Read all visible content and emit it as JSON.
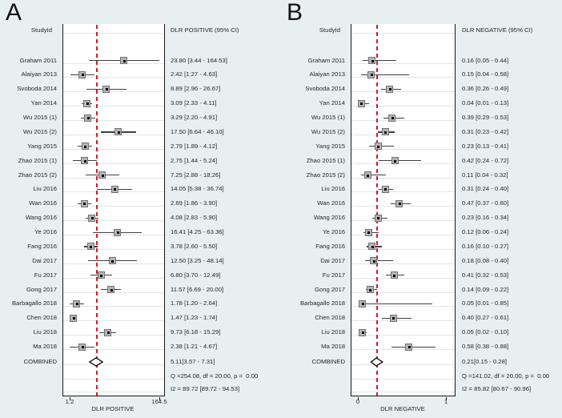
{
  "figure": {
    "colors": {
      "background": "#e8eff1",
      "plot_background": "#ffffff",
      "reference_line_red": "#cb2027",
      "marker_gray": "#b5b5b5",
      "line_black": "#161616"
    }
  },
  "chart_data": [
    {
      "type": "forest",
      "panel_label": "A",
      "column_headers": {
        "study": "StudyId",
        "effect": "DLR POSITIVE (95% CI)"
      },
      "axis": {
        "scale": "log",
        "min": 1.2,
        "max": 164.5,
        "ticks": [
          "1.2",
          "164.5"
        ],
        "xlabel": "DLR POSITIVE",
        "grid": true
      },
      "ref_line_value": 5.11,
      "studies": [
        {
          "label": "Graham 2011",
          "est": 23.8,
          "lo": 3.44,
          "hi": 164.53,
          "text": "23.80 [3.44 - 164.53]"
        },
        {
          "label": "Alaiyan 2013",
          "est": 2.42,
          "lo": 1.27,
          "hi": 4.63,
          "text": "2.42 [1.27 - 4.63]"
        },
        {
          "label": "Svoboda 2014",
          "est": 8.89,
          "lo": 2.96,
          "hi": 26.67,
          "text": "8.89 [2.96 - 26.67]"
        },
        {
          "label": "Yan 2014",
          "est": 3.09,
          "lo": 2.33,
          "hi": 4.11,
          "text": "3.09 [2.33 - 4.11]"
        },
        {
          "label": "Wu 2015 (1)",
          "est": 3.29,
          "lo": 2.2,
          "hi": 4.91,
          "text": "3.29 [2.20 - 4.91]"
        },
        {
          "label": "Wu 2015 (2)",
          "est": 17.5,
          "lo": 6.64,
          "hi": 46.1,
          "text": "17.50 [6.64 - 46.10]"
        },
        {
          "label": "Yang 2015",
          "est": 2.79,
          "lo": 1.89,
          "hi": 4.12,
          "text": "2.79 [1.89 - 4.12]"
        },
        {
          "label": "Zhao 2015 (1)",
          "est": 2.75,
          "lo": 1.44,
          "hi": 5.24,
          "text": "2.75 [1.44 - 5.24]"
        },
        {
          "label": "Zhao 2015 (2)",
          "est": 7.25,
          "lo": 2.88,
          "hi": 18.26,
          "text": "7.25 [2.88 - 18.26]"
        },
        {
          "label": "Liu 2016",
          "est": 14.05,
          "lo": 5.38,
          "hi": 36.74,
          "text": "14.05 [5.38 - 36.74]"
        },
        {
          "label": "Wan 2016",
          "est": 2.69,
          "lo": 1.86,
          "hi": 3.9,
          "text": "2.69 [1.86 - 3.90]"
        },
        {
          "label": "Wang 2016",
          "est": 4.08,
          "lo": 2.83,
          "hi": 5.9,
          "text": "4.08 [2.83 - 5.90]"
        },
        {
          "label": "Ye 2016",
          "est": 16.41,
          "lo": 4.25,
          "hi": 63.36,
          "text": "16.41 [4.25 - 63.36]"
        },
        {
          "label": "Fang 2016",
          "est": 3.78,
          "lo": 2.6,
          "hi": 5.5,
          "text": "3.78 [2.60 - 5.50]"
        },
        {
          "label": "Dai 2017",
          "est": 12.5,
          "lo": 3.25,
          "hi": 48.14,
          "text": "12.50 [3.25 - 48.14]"
        },
        {
          "label": "Fu 2017",
          "est": 6.8,
          "lo": 3.7,
          "hi": 12.49,
          "text": "6.80 [3.70 - 12.49]"
        },
        {
          "label": "Gong 2017",
          "est": 11.57,
          "lo": 6.69,
          "hi": 20.0,
          "text": "11.57 [6.69 - 20.00]"
        },
        {
          "label": "Barbagallo 2018",
          "est": 1.78,
          "lo": 1.2,
          "hi": 2.64,
          "text": "1.78 [1.20 - 2.64]"
        },
        {
          "label": "Chen 2018",
          "est": 1.47,
          "lo": 1.23,
          "hi": 1.74,
          "text": "1.47 [1.23 - 1.74]"
        },
        {
          "label": "Liu 2018",
          "est": 9.73,
          "lo": 6.18,
          "hi": 15.29,
          "text": "9.73 [6.18 - 15.29]"
        },
        {
          "label": "Ma 2018",
          "est": 2.38,
          "lo": 1.21,
          "hi": 4.67,
          "text": "2.38 [1.21 - 4.67]"
        }
      ],
      "combined": {
        "label": "COMBINED",
        "est": 5.11,
        "lo": 3.57,
        "hi": 7.31,
        "text": "5.11[3.57 - 7.31]"
      },
      "heterogeneity": {
        "q_line": "Q =254.08, df = 20.00, p =  0.00",
        "i2_line": "I2 = 89.72 [89.72 - 94.53]"
      }
    },
    {
      "type": "forest",
      "panel_label": "B",
      "column_headers": {
        "study": "StudyId",
        "effect": "DLR NEGATIVE (95% CI)"
      },
      "axis": {
        "scale": "linear",
        "min": 0,
        "max": 1,
        "ticks": [
          "0",
          "1"
        ],
        "xlabel": "DLR NEGATIVE",
        "grid": true
      },
      "ref_line_value": 0.21,
      "studies": [
        {
          "label": "Graham 2011",
          "est": 0.16,
          "lo": 0.05,
          "hi": 0.44,
          "text": "0.16 [0.05 - 0.44]"
        },
        {
          "label": "Alaiyan 2013",
          "est": 0.15,
          "lo": 0.04,
          "hi": 0.58,
          "text": "0.15 [0.04 - 0.58]"
        },
        {
          "label": "Svoboda 2014",
          "est": 0.36,
          "lo": 0.26,
          "hi": 0.49,
          "text": "0.36 [0.26 - 0.49]"
        },
        {
          "label": "Yan 2014",
          "est": 0.04,
          "lo": 0.01,
          "hi": 0.13,
          "text": "0.04 [0.01 - 0.13]"
        },
        {
          "label": "Wu 2015 (1)",
          "est": 0.39,
          "lo": 0.29,
          "hi": 0.53,
          "text": "0.39 [0.29 - 0.53]"
        },
        {
          "label": "Wu 2015 (2)",
          "est": 0.31,
          "lo": 0.23,
          "hi": 0.42,
          "text": "0.31 [0.23 - 0.42]"
        },
        {
          "label": "Yang 2015",
          "est": 0.23,
          "lo": 0.13,
          "hi": 0.41,
          "text": "0.23 [0.13 - 0.41]"
        },
        {
          "label": "Zhao 2015 (1)",
          "est": 0.42,
          "lo": 0.24,
          "hi": 0.72,
          "text": "0.42 [0.24 - 0.72]"
        },
        {
          "label": "Zhao 2015 (2)",
          "est": 0.11,
          "lo": 0.04,
          "hi": 0.32,
          "text": "0.11 [0.04 - 0.32]"
        },
        {
          "label": "Liu 2016",
          "est": 0.31,
          "lo": 0.24,
          "hi": 0.4,
          "text": "0.31 [0.24 - 0.40]"
        },
        {
          "label": "Wan 2016",
          "est": 0.47,
          "lo": 0.37,
          "hi": 0.6,
          "text": "0.47 [0.37 - 0.60]"
        },
        {
          "label": "Wang 2016",
          "est": 0.23,
          "lo": 0.16,
          "hi": 0.34,
          "text": "0.23 [0.16 - 0.34]"
        },
        {
          "label": "Ye 2016",
          "est": 0.12,
          "lo": 0.06,
          "hi": 0.24,
          "text": "0.12 [0.06 - 0.24]"
        },
        {
          "label": "Fang 2016",
          "est": 0.16,
          "lo": 0.1,
          "hi": 0.27,
          "text": "0.16 [0.10 - 0.27]"
        },
        {
          "label": "Dai 2017",
          "est": 0.18,
          "lo": 0.08,
          "hi": 0.4,
          "text": "0.18 [0.08 - 0.40]"
        },
        {
          "label": "Fu 2017",
          "est": 0.41,
          "lo": 0.32,
          "hi": 0.53,
          "text": "0.41 [0.32 - 0.53]"
        },
        {
          "label": "Gong 2017",
          "est": 0.14,
          "lo": 0.09,
          "hi": 0.22,
          "text": "0.14 [0.09 - 0.22]"
        },
        {
          "label": "Barbagallo 2018",
          "est": 0.05,
          "lo": 0.01,
          "hi": 0.85,
          "text": "0.05 [0.01 - 0.85]"
        },
        {
          "label": "Chen 2018",
          "est": 0.4,
          "lo": 0.27,
          "hi": 0.61,
          "text": "0.40 [0.27 - 0.61]"
        },
        {
          "label": "Liu 2018",
          "est": 0.05,
          "lo": 0.02,
          "hi": 0.1,
          "text": "0.05 [0.02 - 0.10]"
        },
        {
          "label": "Ma 2018",
          "est": 0.58,
          "lo": 0.38,
          "hi": 0.88,
          "text": "0.58 [0.38 - 0.88]"
        }
      ],
      "combined": {
        "label": "COMBINED",
        "est": 0.21,
        "lo": 0.15,
        "hi": 0.28,
        "text": "0.21[0.15 - 0.28]"
      },
      "heterogeneity": {
        "q_line": "Q =141.02, df = 20.00, p =  0.00",
        "i2_line": "I2 = 85.82 [80.67 - 90.96]"
      }
    }
  ]
}
